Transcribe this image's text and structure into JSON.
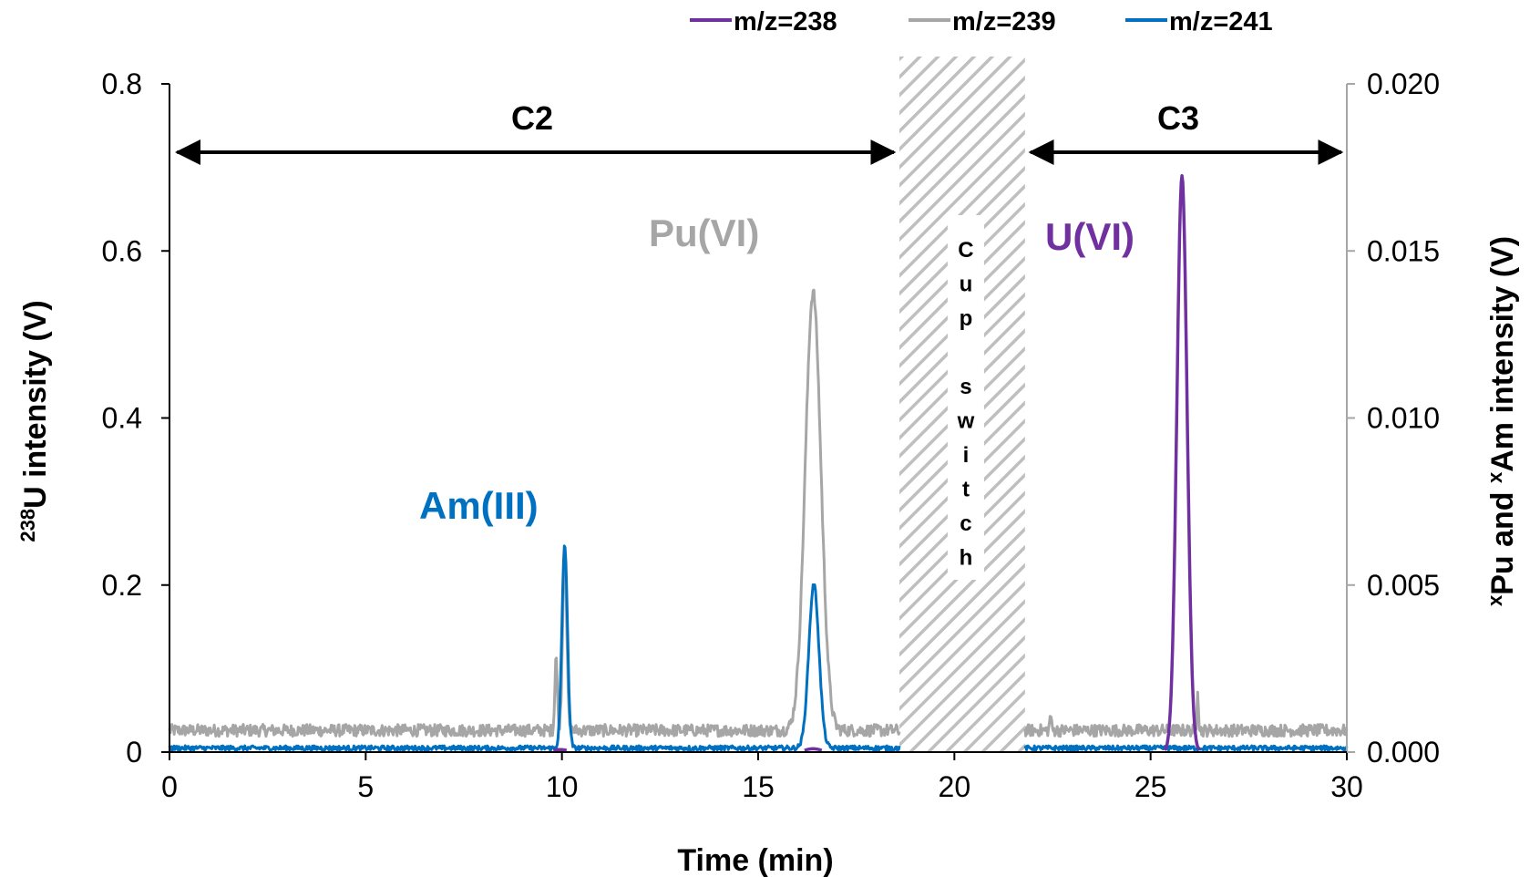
{
  "chart_data": {
    "type": "line",
    "title": "",
    "xlabel": "Time (min)",
    "ylabel_left": {
      "sup": "238",
      "text": "U intensity (V)"
    },
    "ylabel_right": {
      "sup1": "x",
      "text1": "Pu and ",
      "sup2": "x",
      "text2": "Am intensity (V)"
    },
    "xlim": [
      0,
      30
    ],
    "ylim_left": [
      0,
      0.8
    ],
    "ylim_right": [
      0,
      0.02
    ],
    "x_ticks": [
      "0",
      "5",
      "10",
      "15",
      "20",
      "25",
      "30"
    ],
    "y_left_ticks": [
      "0",
      "0.2",
      "0.4",
      "0.6",
      "0.8"
    ],
    "y_right_ticks": [
      "0.000",
      "0.005",
      "0.010",
      "0.015",
      "0.020"
    ],
    "grid": false,
    "legend_position": "top",
    "series": [
      {
        "name": "m/z=238",
        "axis": "left",
        "color": "#7030A0",
        "baseline": 0.0,
        "peaks": [
          {
            "x": 25.8,
            "height": 0.69,
            "width": 0.13
          },
          {
            "x": 9.95,
            "height": 0.003,
            "width": 0.2
          },
          {
            "x": 16.4,
            "height": 0.004,
            "width": 0.2
          }
        ]
      },
      {
        "name": "m/z=239",
        "axis": "right",
        "color": "#A6A6A6",
        "baseline": 0.00065,
        "noise": 0.00018,
        "peaks": [
          {
            "x": 16.4,
            "height": 0.0131,
            "width": 0.2
          },
          {
            "x": 9.85,
            "height": 0.0023,
            "width": 0.03
          },
          {
            "x": 10.07,
            "height": 0.0055,
            "width": 0.05
          },
          {
            "x": 26.2,
            "height": 0.0013,
            "width": 0.02
          },
          {
            "x": 22.45,
            "height": 0.0005,
            "width": 0.02
          }
        ]
      },
      {
        "name": "m/z=241",
        "axis": "right",
        "color": "#0070C0",
        "baseline": 0.00012,
        "noise": 7e-05,
        "peaks": [
          {
            "x": 10.07,
            "height": 0.0061,
            "width": 0.07
          },
          {
            "x": 16.42,
            "height": 0.0049,
            "width": 0.13
          }
        ]
      }
    ],
    "shaded_region": {
      "x_start": 18.6,
      "x_end": 21.8,
      "label_letters": [
        "C",
        "u",
        "p",
        "",
        "s",
        "w",
        "i",
        "t",
        "c",
        "h"
      ]
    },
    "regions": [
      {
        "label": "C2",
        "x_start": 0.1,
        "x_end": 18.6
      },
      {
        "label": "C3",
        "x_start": 21.8,
        "x_end": 30
      }
    ],
    "annotations": [
      {
        "text": "Am(III)",
        "color": "#0070C0"
      },
      {
        "text": "Pu(VI)",
        "color": "#A6A6A6"
      },
      {
        "text": "U(VI)",
        "color": "#7030A0"
      }
    ]
  }
}
